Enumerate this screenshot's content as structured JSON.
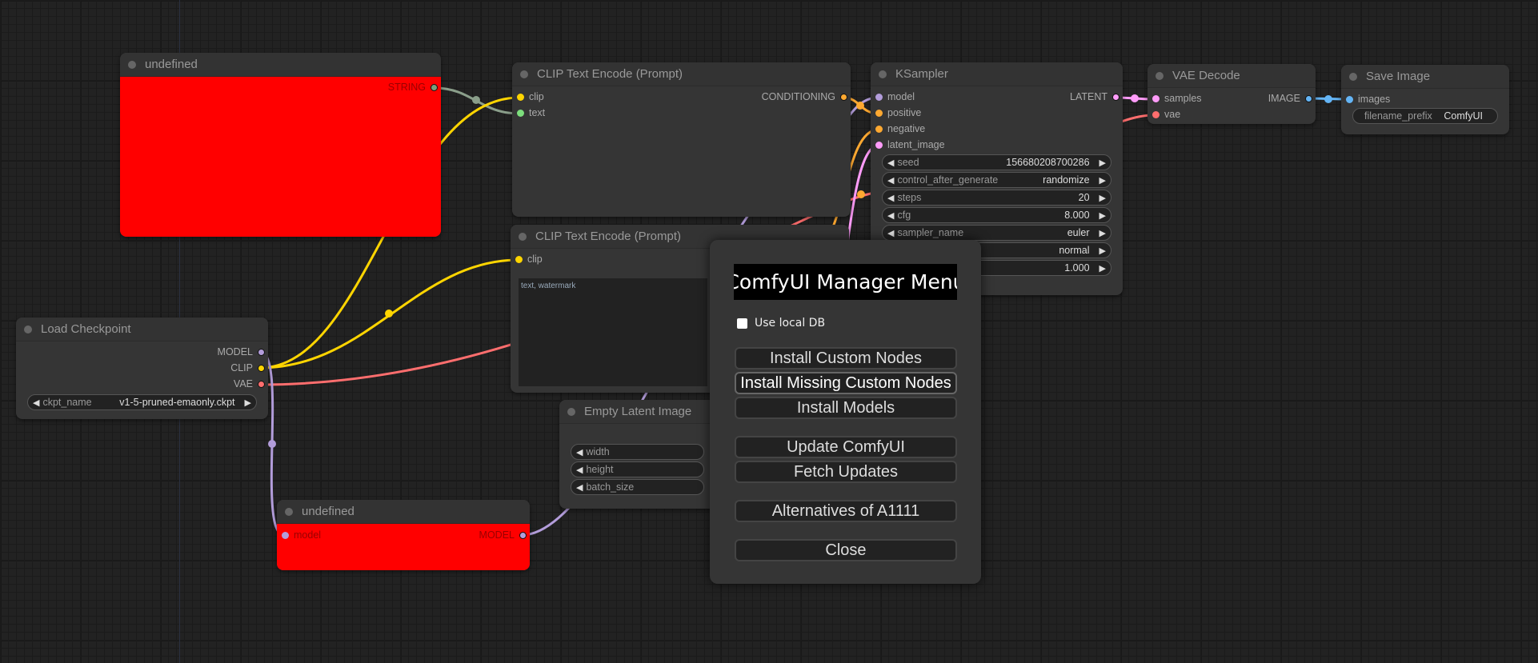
{
  "colors": {
    "model": "#b39ddb",
    "clip": "#ffd500",
    "vae": "#ff6e6e",
    "conditioning": "#ffa931",
    "latent": "#ff9cf9",
    "image": "#64b5f6",
    "string": "#7ba07b",
    "error_node": "#ff0000"
  },
  "nodes": {
    "undefined_string": {
      "title": "undefined",
      "output": "STRING"
    },
    "clip_pos": {
      "title": "CLIP Text Encode (Prompt)",
      "inputs": [
        "clip",
        "text"
      ],
      "output": "CONDITIONING"
    },
    "clip_neg": {
      "title": "CLIP Text Encode (Prompt)",
      "inputs": [
        "clip"
      ],
      "text": "text, watermark"
    },
    "ksampler": {
      "title": "KSampler",
      "inputs": [
        "model",
        "positive",
        "negative",
        "latent_image"
      ],
      "output": "LATENT",
      "widgets": [
        {
          "label": "seed",
          "value": "156680208700286"
        },
        {
          "label": "control_after_generate",
          "value": "randomize"
        },
        {
          "label": "steps",
          "value": "20"
        },
        {
          "label": "cfg",
          "value": "8.000"
        },
        {
          "label": "sampler_name",
          "value": "euler"
        },
        {
          "value": "normal"
        },
        {
          "value": "1.000"
        }
      ]
    },
    "vae_decode": {
      "title": "VAE Decode",
      "inputs": [
        "samples",
        "vae"
      ],
      "output": "IMAGE"
    },
    "save_image": {
      "title": "Save Image",
      "inputs": [
        "images"
      ],
      "widget": {
        "label": "filename_prefix",
        "value": "ComfyUI"
      }
    },
    "load_checkpoint": {
      "title": "Load Checkpoint",
      "outputs": [
        "MODEL",
        "CLIP",
        "VAE"
      ],
      "widget": {
        "label": "ckpt_name",
        "value": "v1-5-pruned-emaonly.ckpt"
      }
    },
    "empty_latent": {
      "title": "Empty Latent Image",
      "widgets": [
        "width",
        "height",
        "batch_size"
      ]
    },
    "undefined_model": {
      "title": "undefined",
      "input": "model",
      "output": "MODEL"
    }
  },
  "manager": {
    "title": "ComfyUI Manager Menu",
    "use_local_db": "Use local DB",
    "use_local_db_checked": false,
    "buttons": [
      "Install Custom Nodes",
      "Install Missing Custom Nodes",
      "Install Models",
      "Update ComfyUI",
      "Fetch Updates",
      "Alternatives of A1111",
      "Close"
    ]
  }
}
